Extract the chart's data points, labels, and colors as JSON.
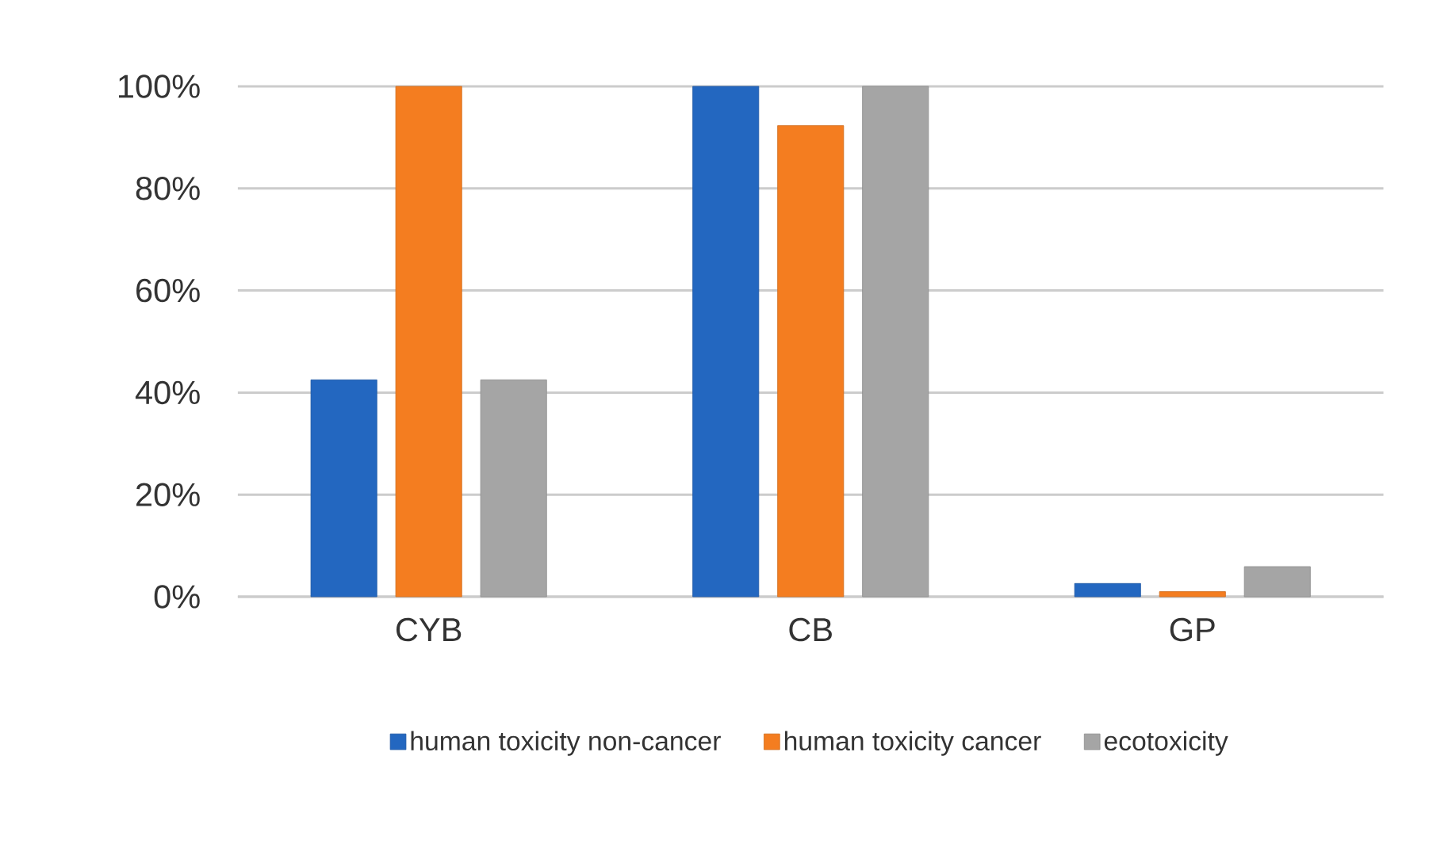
{
  "chart_data": {
    "type": "bar",
    "categories": [
      "CYB",
      "CB",
      "GP"
    ],
    "series": [
      {
        "name": "human toxicity non-cancer",
        "color": "#2367c0",
        "values": [
          42.5,
          100,
          2.6
        ]
      },
      {
        "name": "human toxicity cancer",
        "color": "#f47d20",
        "values": [
          100,
          92.3,
          1.0
        ]
      },
      {
        "name": "ecotoxicity",
        "color": "#a5a5a5",
        "values": [
          42.5,
          100,
          5.9
        ]
      }
    ],
    "ylim": [
      0,
      100
    ],
    "yticks": [
      {
        "value": 0,
        "label": "0%"
      },
      {
        "value": 20,
        "label": "20%"
      },
      {
        "value": 40,
        "label": "40%"
      },
      {
        "value": 60,
        "label": "60%"
      },
      {
        "value": 80,
        "label": "80%"
      },
      {
        "value": 100,
        "label": "100%"
      }
    ],
    "grid": "y",
    "legend": "bottom"
  }
}
